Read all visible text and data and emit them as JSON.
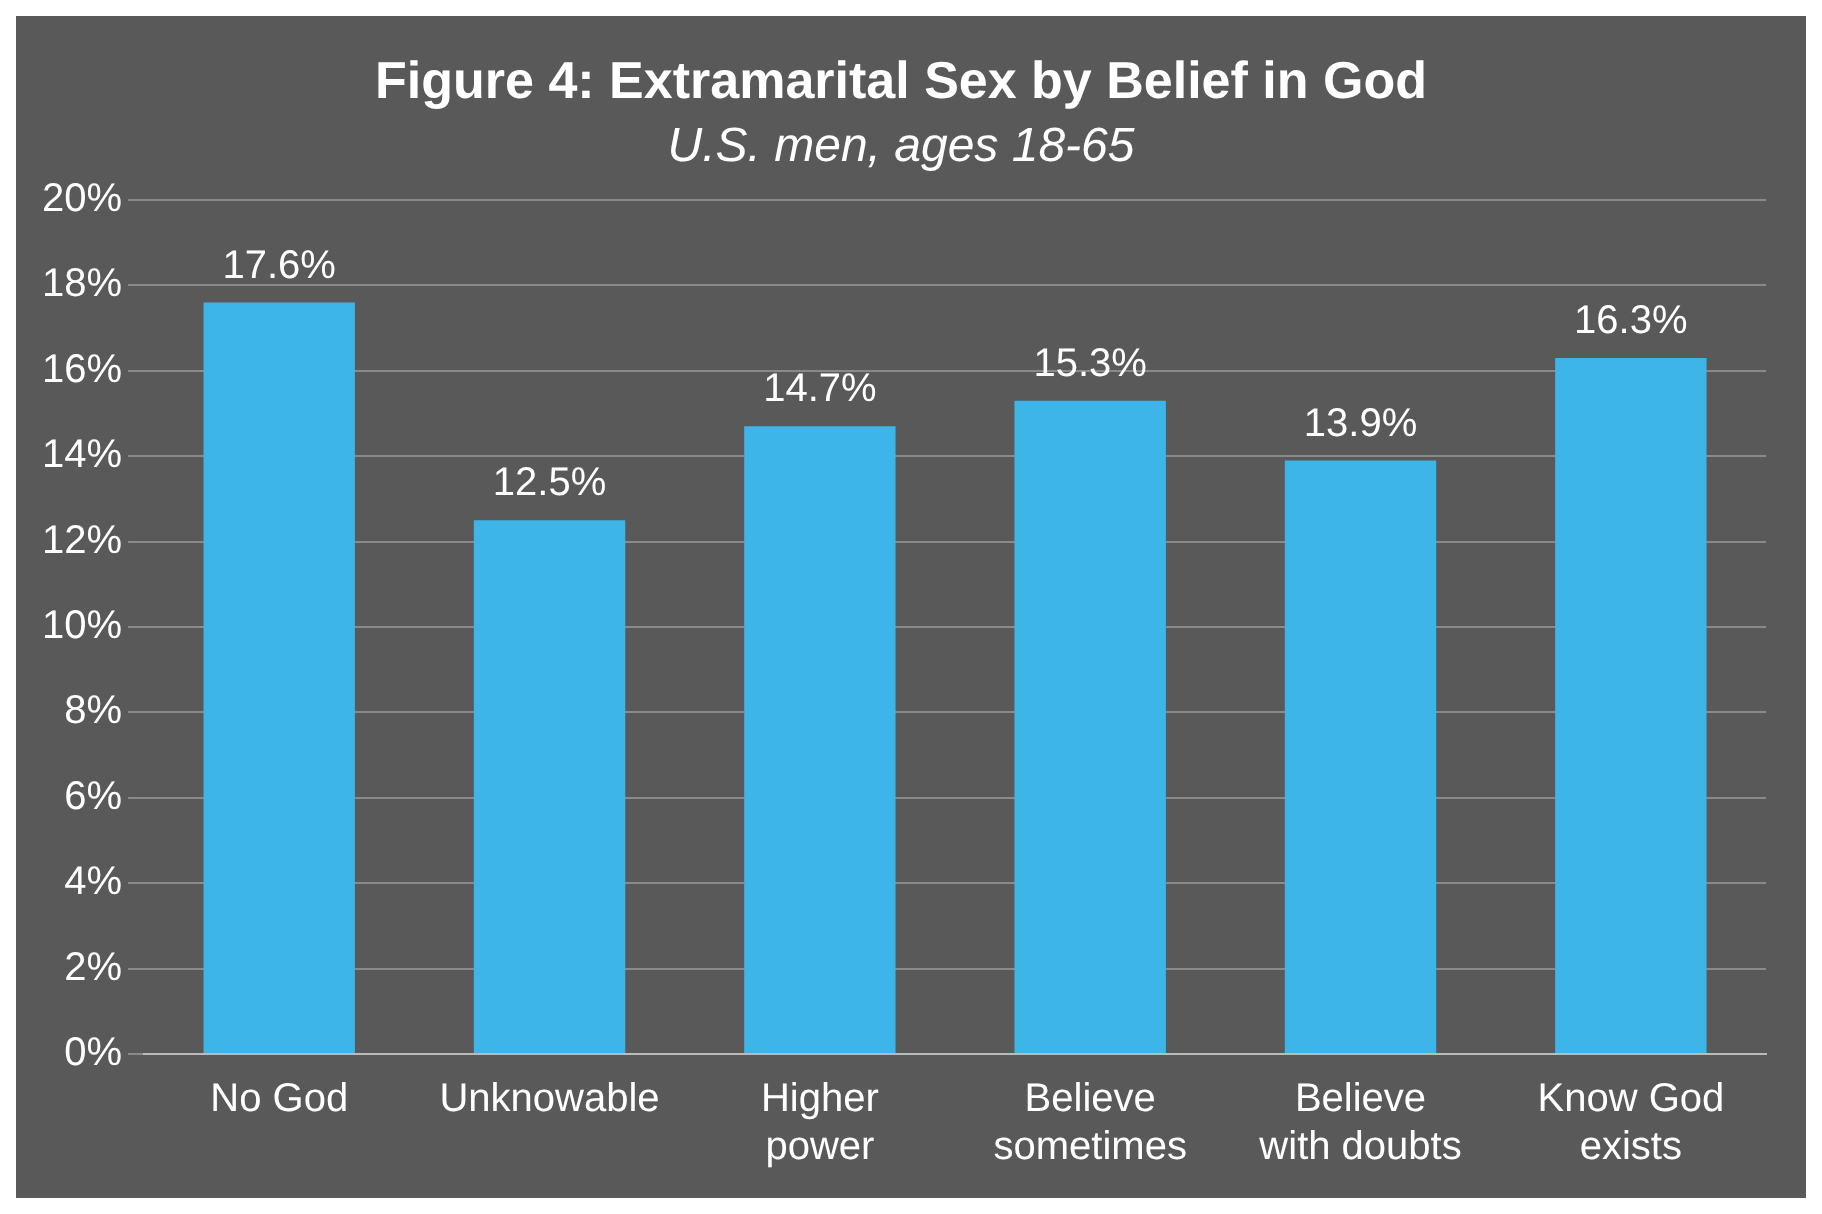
{
  "chart_data": {
    "type": "bar",
    "title": "Figure 4: Extramarital Sex by Belief in God",
    "subtitle": "U.S. men, ages 18-65",
    "categories": [
      "No God",
      "Unknowable",
      "Higher power",
      "Believe sometimes",
      "Believe with doubts",
      "Know God exists"
    ],
    "values": [
      17.6,
      12.5,
      14.7,
      15.3,
      13.9,
      16.3
    ],
    "value_labels": [
      "17.6%",
      "12.5%",
      "14.7%",
      "15.3%",
      "13.9%",
      "16.3%"
    ],
    "color": "#3db5e8",
    "ylim": [
      0,
      20
    ],
    "yticks": [
      {
        "value": 0,
        "label": "0%"
      },
      {
        "value": 2,
        "label": "2%"
      },
      {
        "value": 4,
        "label": "4%"
      },
      {
        "value": 6,
        "label": "6%"
      },
      {
        "value": 8,
        "label": "8%"
      },
      {
        "value": 10,
        "label": "10%"
      },
      {
        "value": 12,
        "label": "12%"
      },
      {
        "value": 14,
        "label": "14%"
      },
      {
        "value": 16,
        "label": "16%"
      },
      {
        "value": 18,
        "label": "18%"
      },
      {
        "value": 20,
        "label": "20%"
      }
    ],
    "grid": "y",
    "legend": false
  }
}
